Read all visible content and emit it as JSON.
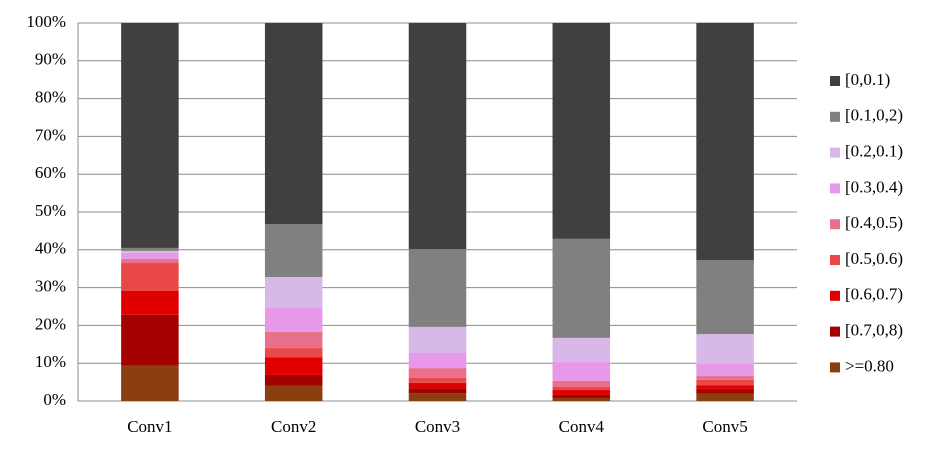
{
  "chart_data": {
    "type": "stacked_bar",
    "categories": [
      "Conv1",
      "Conv2",
      "Conv3",
      "Conv4",
      "Conv5"
    ],
    "series": [
      {
        "name": ">=0.80",
        "color": "#8b3e0f",
        "values": [
          9.3,
          4.0,
          2.1,
          0.8,
          1.9
        ]
      },
      {
        "name": "[0.7,0,8)",
        "color": "#a50000",
        "values": [
          13.5,
          2.9,
          1.3,
          0.8,
          1.3
        ]
      },
      {
        "name": "[0.6,0.7)",
        "color": "#e00000",
        "values": [
          6.3,
          4.7,
          1.4,
          1.3,
          1.0
        ]
      },
      {
        "name": "[0.5,0.6)",
        "color": "#e84848",
        "values": [
          7.4,
          2.4,
          1.3,
          0.8,
          1.4
        ]
      },
      {
        "name": "[0.4,0.5)",
        "color": "#e8708a",
        "values": [
          1.1,
          4.3,
          2.6,
          1.6,
          1.0
        ]
      },
      {
        "name": "[0.3,0.4)",
        "color": "#e898e8",
        "values": [
          1.6,
          6.3,
          4.0,
          5.0,
          3.2
        ]
      },
      {
        "name": "[0.2,0.1)",
        "color": "#d8b8e8",
        "values": [
          0.5,
          8.2,
          6.9,
          6.4,
          7.9
        ]
      },
      {
        "name": "[0.1,0,2)",
        "color": "#808080",
        "values": [
          0.8,
          14.0,
          20.6,
          26.2,
          19.6
        ]
      },
      {
        "name": "[0,0.1)",
        "color": "#404040",
        "values": [
          59.5,
          53.2,
          59.8,
          57.1,
          62.7
        ]
      }
    ],
    "ylim": [
      0,
      100
    ],
    "yticks": [
      {
        "value": 0,
        "label": "0%"
      },
      {
        "value": 10,
        "label": "10%"
      },
      {
        "value": 20,
        "label": "20%"
      },
      {
        "value": 30,
        "label": "30%"
      },
      {
        "value": 40,
        "label": "40%"
      },
      {
        "value": 50,
        "label": "50%"
      },
      {
        "value": 60,
        "label": "60%"
      },
      {
        "value": 70,
        "label": "70%"
      },
      {
        "value": 80,
        "label": "80%"
      },
      {
        "value": 90,
        "label": "90%"
      },
      {
        "value": 100,
        "label": "100%"
      }
    ],
    "grid": true,
    "legend": "right"
  }
}
